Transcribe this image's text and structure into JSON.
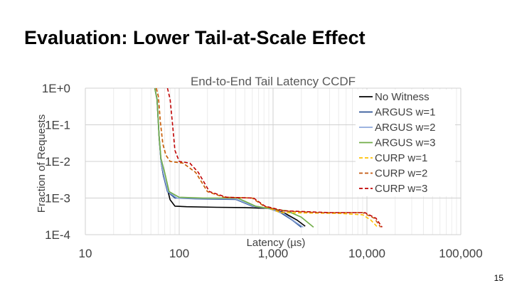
{
  "slide": {
    "title": "Evaluation: Lower Tail-at-Scale Effect",
    "page_number": "15"
  },
  "chart_data": {
    "type": "line",
    "title": "End-to-End Tail Latency CCDF",
    "xlabel": "Latency (µs)",
    "ylabel": "Fraction of Requests",
    "xscale": "log",
    "yscale": "log",
    "xlim": [
      10,
      100000
    ],
    "ylim": [
      0.0001,
      1
    ],
    "x_tick_labels": [
      "10",
      "100",
      "1,000",
      "10,000",
      "100,000"
    ],
    "x_tick_values": [
      10,
      100,
      1000,
      10000,
      100000
    ],
    "y_tick_labels": [
      "1E+0",
      "1E-1",
      "1E-2",
      "1E-3",
      "1E-4"
    ],
    "y_tick_values": [
      1,
      0.1,
      0.01,
      0.001,
      0.0001
    ],
    "grid": true,
    "legend_position": "right",
    "series": [
      {
        "name": "No Witness",
        "color": "#000000",
        "dash": "solid",
        "points": [
          [
            55,
            1
          ],
          [
            58,
            0.5
          ],
          [
            61,
            0.05
          ],
          [
            64,
            0.01
          ],
          [
            68,
            0.004
          ],
          [
            74,
            0.002
          ],
          [
            80,
            0.0009
          ],
          [
            90,
            0.0006
          ],
          [
            120,
            0.00058
          ],
          [
            250,
            0.00056
          ],
          [
            500,
            0.00055
          ],
          [
            900,
            0.00052
          ],
          [
            1300,
            0.0004
          ],
          [
            1800,
            0.00025
          ],
          [
            2200,
            0.00017
          ]
        ]
      },
      {
        "name": "ARGUS w=1",
        "color": "#2f5597",
        "dash": "solid",
        "points": [
          [
            55,
            1
          ],
          [
            58,
            0.5
          ],
          [
            61,
            0.05
          ],
          [
            64,
            0.01
          ],
          [
            68,
            0.004
          ],
          [
            75,
            0.0015
          ],
          [
            90,
            0.001
          ],
          [
            150,
            0.00095
          ],
          [
            400,
            0.00092
          ],
          [
            600,
            0.0006
          ],
          [
            900,
            0.00052
          ],
          [
            1200,
            0.0004
          ],
          [
            1600,
            0.00025
          ],
          [
            2000,
            0.00016
          ]
        ]
      },
      {
        "name": "ARGUS w=2",
        "color": "#8faadc",
        "dash": "solid",
        "points": [
          [
            55,
            1
          ],
          [
            58,
            0.5
          ],
          [
            61,
            0.05
          ],
          [
            64,
            0.01
          ],
          [
            69,
            0.004
          ],
          [
            76,
            0.0015
          ],
          [
            95,
            0.001
          ],
          [
            160,
            0.00098
          ],
          [
            400,
            0.00095
          ],
          [
            620,
            0.0006
          ],
          [
            950,
            0.0005
          ],
          [
            1300,
            0.00038
          ],
          [
            1700,
            0.00023
          ],
          [
            2100,
            0.00016
          ]
        ]
      },
      {
        "name": "ARGUS w=3",
        "color": "#70ad47",
        "dash": "solid",
        "points": [
          [
            55,
            1
          ],
          [
            58,
            0.5
          ],
          [
            61,
            0.05
          ],
          [
            64,
            0.012
          ],
          [
            70,
            0.005
          ],
          [
            78,
            0.0015
          ],
          [
            100,
            0.00105
          ],
          [
            180,
            0.001
          ],
          [
            420,
            0.001
          ],
          [
            650,
            0.0006
          ],
          [
            1000,
            0.0005
          ],
          [
            1400,
            0.00045
          ],
          [
            2000,
            0.0003
          ],
          [
            2700,
            0.00016
          ]
        ]
      },
      {
        "name": "CURP w=1",
        "color": "#ffc000",
        "dash": "dashed",
        "points": [
          [
            57,
            1
          ],
          [
            60,
            0.6
          ],
          [
            63,
            0.12
          ],
          [
            67,
            0.03
          ],
          [
            72,
            0.015
          ],
          [
            80,
            0.01
          ],
          [
            110,
            0.009
          ],
          [
            150,
            0.005
          ],
          [
            200,
            0.0015
          ],
          [
            300,
            0.00105
          ],
          [
            600,
            0.001
          ],
          [
            800,
            0.0006
          ],
          [
            1200,
            0.0004
          ],
          [
            5000,
            0.00038
          ],
          [
            9000,
            0.00035
          ],
          [
            11000,
            0.00025
          ],
          [
            13000,
            0.00016
          ]
        ]
      },
      {
        "name": "CURP w=2",
        "color": "#c55a11",
        "dash": "dashed",
        "points": [
          [
            57,
            1
          ],
          [
            60,
            0.6
          ],
          [
            63,
            0.12
          ],
          [
            67,
            0.03
          ],
          [
            72,
            0.015
          ],
          [
            80,
            0.01
          ],
          [
            110,
            0.009
          ],
          [
            150,
            0.005
          ],
          [
            200,
            0.0015
          ],
          [
            300,
            0.00105
          ],
          [
            600,
            0.001
          ],
          [
            800,
            0.0006
          ],
          [
            1200,
            0.00045
          ],
          [
            3000,
            0.0004
          ],
          [
            9000,
            0.0004
          ],
          [
            12000,
            0.00028
          ],
          [
            14000,
            0.00016
          ]
        ]
      },
      {
        "name": "CURP w=3",
        "color": "#c00000",
        "dash": "dashed",
        "points": [
          [
            75,
            1
          ],
          [
            80,
            0.5
          ],
          [
            85,
            0.1
          ],
          [
            90,
            0.02
          ],
          [
            100,
            0.01
          ],
          [
            130,
            0.009
          ],
          [
            160,
            0.005
          ],
          [
            210,
            0.0015
          ],
          [
            320,
            0.00105
          ],
          [
            620,
            0.001
          ],
          [
            820,
            0.0006
          ],
          [
            1300,
            0.00045
          ],
          [
            4000,
            0.0004
          ],
          [
            9500,
            0.0004
          ],
          [
            12500,
            0.00028
          ],
          [
            14500,
            0.00016
          ]
        ]
      }
    ]
  }
}
